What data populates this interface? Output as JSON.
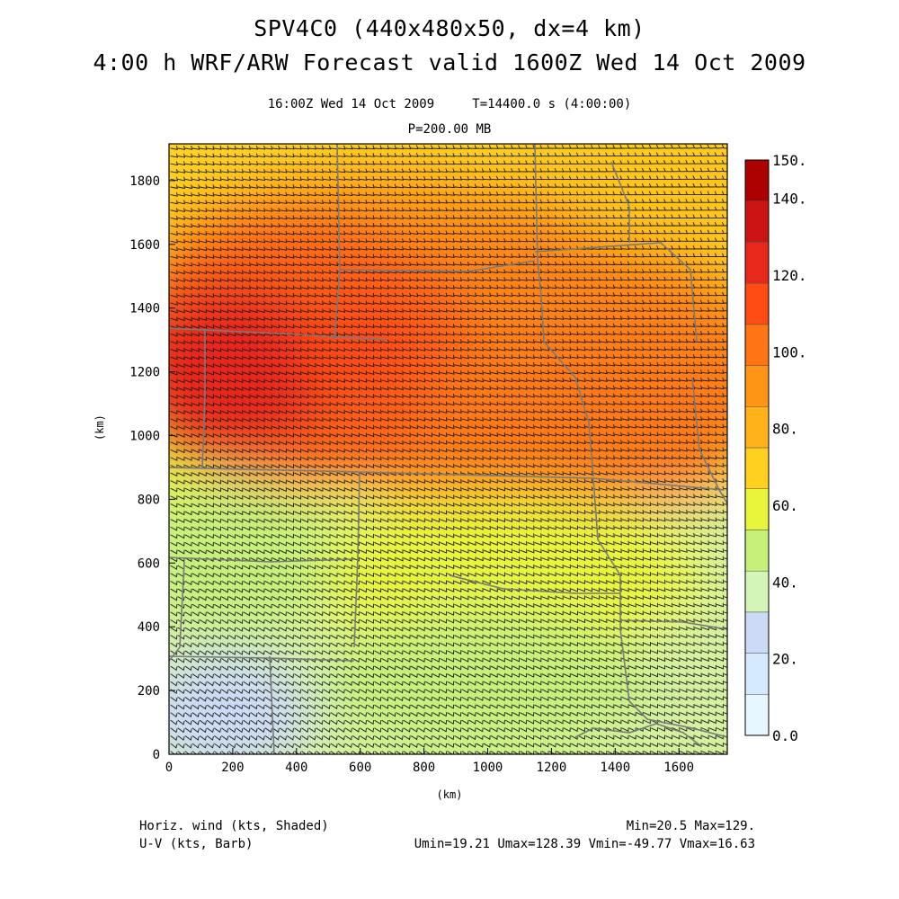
{
  "header": {
    "title_line1": "SPV4C0 (440x480x50, dx=4 km)",
    "title_line2": "4:00 h WRF/ARW Forecast valid 1600Z Wed 14 Oct 2009",
    "subtitle_time": "16:00Z Wed 14 Oct 2009     T=14400.0 s (4:00:00)",
    "subtitle_level": "P=200.00 MB"
  },
  "axes": {
    "x_label": "(km)",
    "y_label": "(km)",
    "x_ticks": [
      "0",
      "200",
      "400",
      "600",
      "800",
      "1000",
      "1200",
      "1400",
      "1600"
    ],
    "y_ticks": [
      "0",
      "200",
      "400",
      "600",
      "800",
      "1000",
      "1200",
      "1400",
      "1600",
      "1800"
    ]
  },
  "colorbar": {
    "labels": [
      "0.0",
      "20.",
      "40.",
      "60.",
      "80.",
      "100.",
      "120.",
      "140.",
      "150."
    ],
    "colors": [
      "#e6f7ff",
      "#d6eaff",
      "#ccdaf5",
      "#d4f5b8",
      "#c6f07a",
      "#e8f53a",
      "#ffd020",
      "#ffb21a",
      "#ff9514",
      "#ff7414",
      "#ff4c14",
      "#e8281a",
      "#cc1414",
      "#ad0000"
    ]
  },
  "footer": {
    "left_line1": "Horiz. wind (kts, Shaded)",
    "left_line2": "U-V (kts, Barb)",
    "right_line1": "Min=20.5 Max=129.",
    "right_line2": "Umin=19.21 Umax=128.39 Vmin=-49.77 Vmax=16.63"
  },
  "map": {
    "field": "horizontal wind speed at 200 mb",
    "units": "kts",
    "min": 20.5,
    "max": 129,
    "boundary_color": "#7a7a7a",
    "barb_color": "#1a1a1a"
  }
}
